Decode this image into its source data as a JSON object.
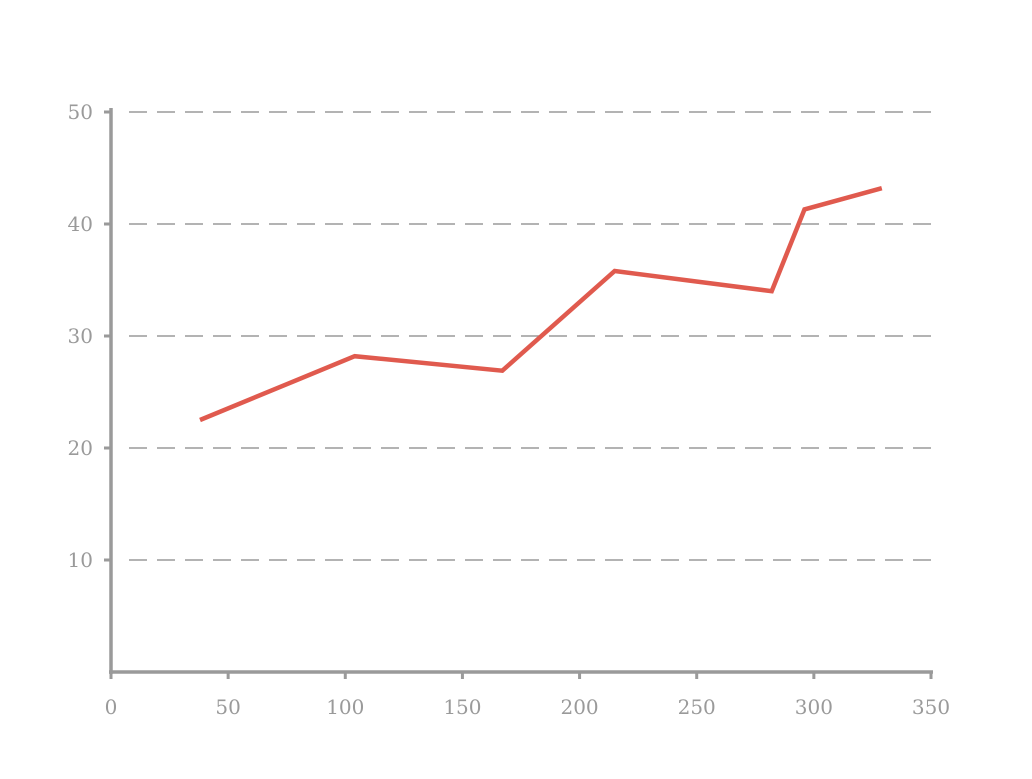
{
  "chart_data": {
    "type": "line",
    "title": "",
    "xlabel": "",
    "ylabel": "",
    "xlim": [
      0,
      350
    ],
    "ylim": [
      0,
      50
    ],
    "x_ticks": [
      0,
      50,
      100,
      150,
      200,
      250,
      300,
      350
    ],
    "y_ticks": [
      10,
      20,
      30,
      40,
      50
    ],
    "x_tick_labels": [
      "0",
      "50",
      "100",
      "150",
      "200",
      "250",
      "300",
      "350"
    ],
    "y_tick_labels": [
      "10",
      "20",
      "30",
      "40",
      "50"
    ],
    "grid": "horizontal dashed",
    "legend": "none",
    "series": [
      {
        "color": "#e05a4e",
        "x": [
          38,
          104,
          167,
          215,
          282,
          296,
          329
        ],
        "y": [
          22.5,
          28.2,
          26.9,
          35.8,
          34.0,
          41.3,
          43.2
        ]
      }
    ]
  }
}
